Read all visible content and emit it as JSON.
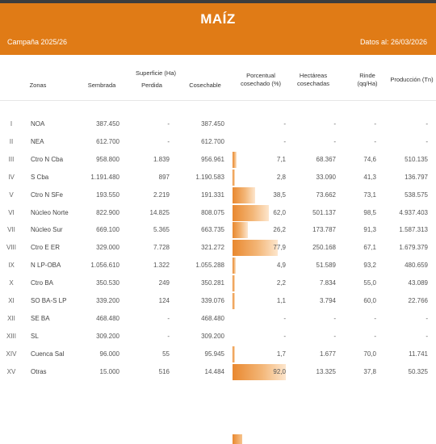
{
  "header": {
    "title": "MAÍZ",
    "campaign": "Campaña 2025/26",
    "data_date": "Datos al: 26/03/2026",
    "accent": "#e07b16"
  },
  "columns": {
    "zonas": "Zonas",
    "superficie": "Superficie (Ha)",
    "sembrada": "Sembrada",
    "perdida": "Perdida",
    "cosechable": "Cosechable",
    "porcentual": "Porcentual cosechado (%)",
    "hectareas": "Hectáreas cosechadas",
    "rinde": "Rinde (qq/Ha)",
    "produccion": "Producción (Tn)"
  },
  "rows": [
    {
      "num": "I",
      "zona": "NOA",
      "sembrada": "387.450",
      "perdida": "-",
      "cosechable": "387.450",
      "pct": "-",
      "pct_value": 0,
      "hectareas": "-",
      "rinde": "-",
      "produccion": "-"
    },
    {
      "num": "II",
      "zona": "NEA",
      "sembrada": "612.700",
      "perdida": "-",
      "cosechable": "612.700",
      "pct": "-",
      "pct_value": 0,
      "hectareas": "-",
      "rinde": "-",
      "produccion": "-"
    },
    {
      "num": "III",
      "zona": "Ctro N Cba",
      "sembrada": "958.800",
      "perdida": "1.839",
      "cosechable": "956.961",
      "pct": "7,1",
      "pct_value": 7.1,
      "hectareas": "68.367",
      "rinde": "74,6",
      "produccion": "510.135"
    },
    {
      "num": "IV",
      "zona": "S Cba",
      "sembrada": "1.191.480",
      "perdida": "897",
      "cosechable": "1.190.583",
      "pct": "2,8",
      "pct_value": 2.8,
      "hectareas": "33.090",
      "rinde": "41,3",
      "produccion": "136.797"
    },
    {
      "num": "V",
      "zona": "Ctro N SFe",
      "sembrada": "193.550",
      "perdida": "2.219",
      "cosechable": "191.331",
      "pct": "38,5",
      "pct_value": 38.5,
      "hectareas": "73.662",
      "rinde": "73,1",
      "produccion": "538.575"
    },
    {
      "num": "VI",
      "zona": "Núcleo Norte",
      "sembrada": "822.900",
      "perdida": "14.825",
      "cosechable": "808.075",
      "pct": "62,0",
      "pct_value": 62.0,
      "hectareas": "501.137",
      "rinde": "98,5",
      "produccion": "4.937.403"
    },
    {
      "num": "VII",
      "zona": "Núcleo Sur",
      "sembrada": "669.100",
      "perdida": "5.365",
      "cosechable": "663.735",
      "pct": "26,2",
      "pct_value": 26.2,
      "hectareas": "173.787",
      "rinde": "91,3",
      "produccion": "1.587.313"
    },
    {
      "num": "VIII",
      "zona": "Ctro E ER",
      "sembrada": "329.000",
      "perdida": "7.728",
      "cosechable": "321.272",
      "pct": "77,9",
      "pct_value": 77.9,
      "hectareas": "250.168",
      "rinde": "67,1",
      "produccion": "1.679.379"
    },
    {
      "num": "IX",
      "zona": "N LP-OBA",
      "sembrada": "1.056.610",
      "perdida": "1.322",
      "cosechable": "1.055.288",
      "pct": "4,9",
      "pct_value": 4.9,
      "hectareas": "51.589",
      "rinde": "93,2",
      "produccion": "480.659"
    },
    {
      "num": "X",
      "zona": "Ctro BA",
      "sembrada": "350.530",
      "perdida": "249",
      "cosechable": "350.281",
      "pct": "2,2",
      "pct_value": 2.2,
      "hectareas": "7.834",
      "rinde": "55,0",
      "produccion": "43.089"
    },
    {
      "num": "XI",
      "zona": "SO BA-S LP",
      "sembrada": "339.200",
      "perdida": "124",
      "cosechable": "339.076",
      "pct": "1,1",
      "pct_value": 1.1,
      "hectareas": "3.794",
      "rinde": "60,0",
      "produccion": "22.766"
    },
    {
      "num": "XII",
      "zona": "SE BA",
      "sembrada": "468.480",
      "perdida": "-",
      "cosechable": "468.480",
      "pct": "-",
      "pct_value": 0,
      "hectareas": "-",
      "rinde": "-",
      "produccion": "-"
    },
    {
      "num": "XIII",
      "zona": "SL",
      "sembrada": "309.200",
      "perdida": "-",
      "cosechable": "309.200",
      "pct": "-",
      "pct_value": 0,
      "hectareas": "-",
      "rinde": "-",
      "produccion": "-"
    },
    {
      "num": "XIV",
      "zona": "Cuenca Sal",
      "sembrada": "96.000",
      "perdida": "55",
      "cosechable": "95.945",
      "pct": "1,7",
      "pct_value": 1.7,
      "hectareas": "1.677",
      "rinde": "70,0",
      "produccion": "11.741"
    },
    {
      "num": "XV",
      "zona": "Otras",
      "sembrada": "15.000",
      "perdida": "516",
      "cosechable": "14.484",
      "pct": "92,0",
      "pct_value": 92.0,
      "hectareas": "13.325",
      "rinde": "37,8",
      "produccion": "50.325"
    }
  ]
}
